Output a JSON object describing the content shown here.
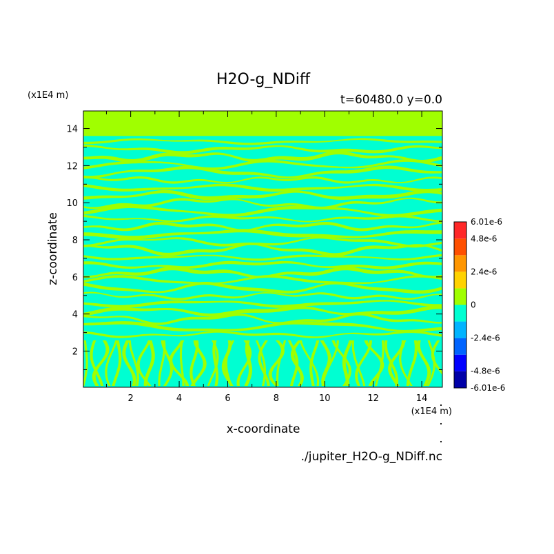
{
  "chart_data": {
    "type": "heatmap",
    "title": "H2O-g_NDiff",
    "subtitle": "t=60480.0 y=0.0",
    "xlabel": "x-coordinate",
    "ylabel": "z-coordinate",
    "x_unit": "(x1E4 m)",
    "y_unit": "(x1E4 m)",
    "source_label": "./jupiter_H2O-g_NDiff.nc",
    "xlim": [
      0.05,
      14.85
    ],
    "ylim": [
      0.05,
      14.95
    ],
    "x_ticks": [
      "2",
      "4",
      "6",
      "8",
      "10",
      "12",
      "14"
    ],
    "y_ticks": [
      "2",
      "4",
      "6",
      "8",
      "10",
      "12",
      "14"
    ],
    "x_tick_values": [
      2,
      4,
      6,
      8,
      10,
      12,
      14
    ],
    "y_tick_values": [
      2,
      4,
      6,
      8,
      10,
      12,
      14
    ],
    "colorbar": {
      "levels": [
        -6.01e-06,
        -4.8e-06,
        -3.6e-06,
        -2.4e-06,
        -1.2e-06,
        0,
        1.2e-06,
        2.4e-06,
        3.6e-06,
        4.8e-06,
        6.01e-06
      ],
      "colors": [
        "#0000a8",
        "#0000ff",
        "#0064ff",
        "#00b4ff",
        "#00ffd2",
        "#a0ff00",
        "#ffd200",
        "#ff9600",
        "#ff5000",
        "#ff2828"
      ],
      "labels": [
        {
          "value": 6.01e-06,
          "text": "6.01e-6"
        },
        {
          "value": 4.8e-06,
          "text": "4.8e-6"
        },
        {
          "value": 2.4e-06,
          "text": "2.4e-6"
        },
        {
          "value": 0,
          "text": "0"
        },
        {
          "value": -2.4e-06,
          "text": "-2.4e-6"
        },
        {
          "value": -4.8e-06,
          "text": "-4.8e-6"
        },
        {
          "value": -6.01e-06,
          "text": "-6.01e-6"
        }
      ]
    },
    "field_colors": {
      "positive": "#a0ff00",
      "negative": "#00ffd2"
    },
    "top_band_z": [
      13.6,
      14.95
    ]
  }
}
